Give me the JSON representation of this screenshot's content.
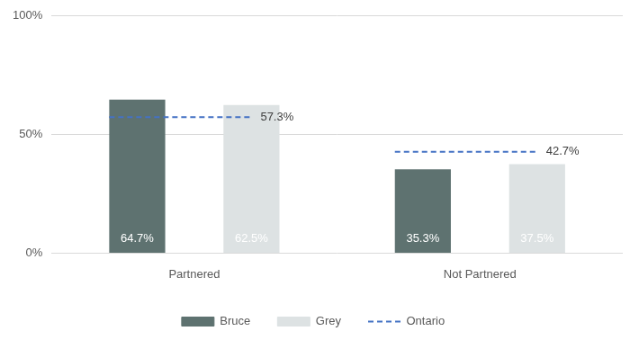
{
  "chart_data": {
    "type": "bar",
    "categories": [
      "Partnered",
      "Not Partnered"
    ],
    "series": [
      {
        "name": "Bruce",
        "color": "#5e7270",
        "values": [
          64.7,
          35.3
        ],
        "value_labels": [
          "64.7%",
          "35.3%"
        ]
      },
      {
        "name": "Grey",
        "color": "#dde2e3",
        "values": [
          62.5,
          37.5
        ],
        "value_labels": [
          "62.5%",
          "37.5%"
        ]
      },
      {
        "name": "Ontario",
        "type": "line",
        "line_style": "dashed",
        "color": "#4472c4",
        "values": [
          57.3,
          42.7
        ],
        "value_labels": [
          "57.3%",
          "42.7%"
        ]
      }
    ],
    "ylim": [
      0,
      100
    ],
    "yticks": [
      {
        "value": 0,
        "label": "0%"
      },
      {
        "value": 50,
        "label": "50%"
      },
      {
        "value": 100,
        "label": "100%"
      }
    ],
    "grid": true,
    "legend": "bottom",
    "data_labels": true
  }
}
